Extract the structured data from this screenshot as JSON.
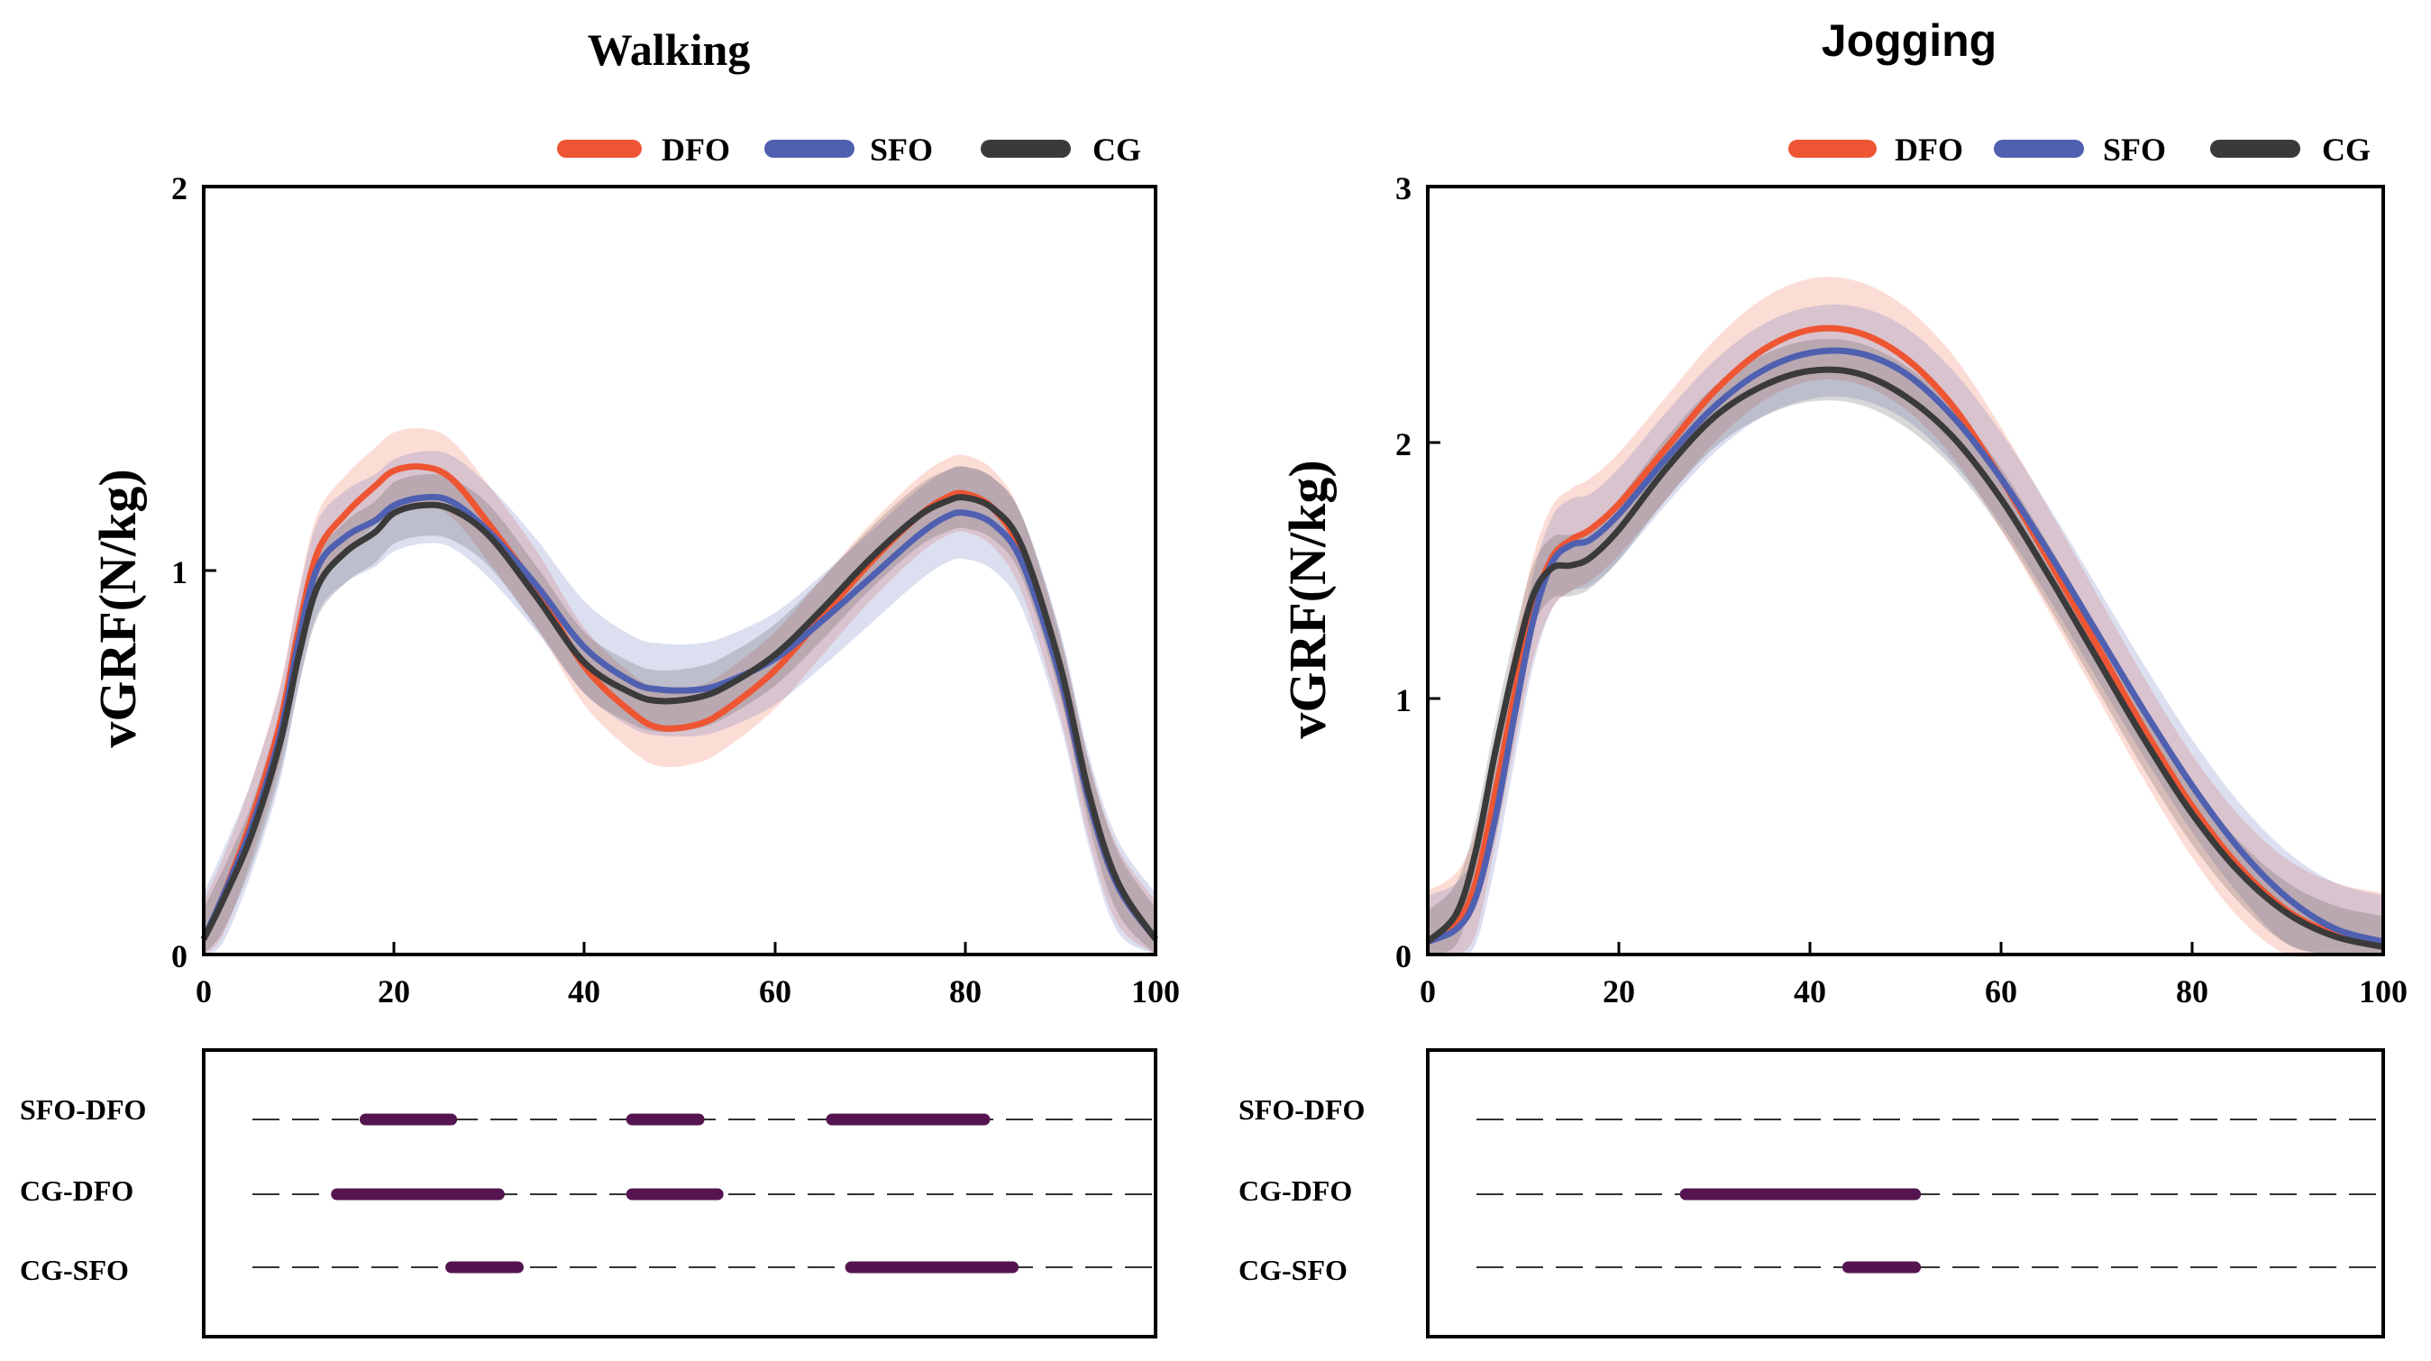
{
  "chart_data": [
    {
      "type": "line",
      "title": "Walking",
      "xlabel": "",
      "ylabel": "vGRF(N/kg)",
      "xlim": [
        0,
        100
      ],
      "ylim": [
        0,
        2
      ],
      "x_ticks": [
        "0",
        "20",
        "40",
        "60",
        "80",
        "100"
      ],
      "y_ticks": [
        "0",
        "1",
        "2"
      ],
      "legend_position": "top-right",
      "x": [
        0,
        2,
        5,
        8,
        10,
        12,
        15,
        18,
        20,
        23,
        26,
        30,
        35,
        40,
        45,
        48,
        52,
        55,
        60,
        65,
        70,
        75,
        78,
        80,
        83,
        86,
        90,
        93,
        96,
        100
      ],
      "series": [
        {
          "name": "DFO",
          "color": "#EE5533",
          "band": 0.1,
          "values": [
            0.04,
            0.15,
            0.35,
            0.6,
            0.85,
            1.05,
            1.15,
            1.22,
            1.26,
            1.27,
            1.24,
            1.12,
            0.95,
            0.75,
            0.63,
            0.59,
            0.6,
            0.64,
            0.74,
            0.88,
            1.02,
            1.14,
            1.19,
            1.2,
            1.16,
            1.04,
            0.72,
            0.4,
            0.18,
            0.04
          ]
        },
        {
          "name": "SFO",
          "color": "#5060B0",
          "band": 0.12,
          "values": [
            0.04,
            0.15,
            0.33,
            0.57,
            0.82,
            1.01,
            1.09,
            1.13,
            1.17,
            1.19,
            1.18,
            1.1,
            0.96,
            0.8,
            0.71,
            0.69,
            0.69,
            0.71,
            0.77,
            0.87,
            0.98,
            1.09,
            1.14,
            1.15,
            1.12,
            1.02,
            0.72,
            0.4,
            0.18,
            0.04
          ]
        },
        {
          "name": "CG",
          "color": "#3A3A3A",
          "band": 0.08,
          "values": [
            0.04,
            0.14,
            0.31,
            0.55,
            0.78,
            0.96,
            1.05,
            1.1,
            1.15,
            1.17,
            1.16,
            1.09,
            0.93,
            0.76,
            0.68,
            0.66,
            0.67,
            0.7,
            0.78,
            0.9,
            1.03,
            1.14,
            1.18,
            1.19,
            1.16,
            1.06,
            0.75,
            0.42,
            0.19,
            0.04
          ]
        }
      ],
      "comparisons": [
        {
          "label": "SFO-DFO",
          "ranges": [
            [
              17,
              26
            ],
            [
              45,
              52
            ],
            [
              66,
              82
            ]
          ]
        },
        {
          "label": "CG-DFO",
          "ranges": [
            [
              14,
              31
            ],
            [
              45,
              54
            ]
          ]
        },
        {
          "label": "CG-SFO",
          "ranges": [
            [
              26,
              33
            ],
            [
              68,
              85
            ]
          ]
        }
      ]
    },
    {
      "type": "line",
      "title": "Jogging",
      "xlabel": "",
      "ylabel": "vGRF(N/kg)",
      "xlim": [
        0,
        100
      ],
      "ylim": [
        0,
        3
      ],
      "x_ticks": [
        "0",
        "20",
        "40",
        "60",
        "80",
        "100"
      ],
      "y_ticks": [
        "0",
        "1",
        "2",
        "3"
      ],
      "legend_position": "top-right",
      "x": [
        0,
        3,
        5,
        7,
        9,
        11,
        13,
        15,
        17,
        20,
        25,
        30,
        35,
        40,
        45,
        50,
        55,
        60,
        65,
        70,
        75,
        80,
        85,
        90,
        95,
        100
      ],
      "series": [
        {
          "name": "DFO",
          "color": "#EE5533",
          "band": 0.2,
          "values": [
            0.05,
            0.12,
            0.28,
            0.62,
            1.0,
            1.35,
            1.55,
            1.62,
            1.66,
            1.76,
            1.98,
            2.2,
            2.36,
            2.44,
            2.43,
            2.33,
            2.14,
            1.86,
            1.54,
            1.21,
            0.88,
            0.58,
            0.34,
            0.17,
            0.08,
            0.04
          ]
        },
        {
          "name": "SFO",
          "color": "#5060B0",
          "band": 0.18,
          "values": [
            0.05,
            0.1,
            0.22,
            0.52,
            0.92,
            1.3,
            1.53,
            1.6,
            1.62,
            1.72,
            1.94,
            2.14,
            2.28,
            2.35,
            2.35,
            2.27,
            2.1,
            1.86,
            1.57,
            1.26,
            0.95,
            0.66,
            0.41,
            0.22,
            0.1,
            0.05
          ]
        },
        {
          "name": "CG",
          "color": "#3A3A3A",
          "band": 0.12,
          "values": [
            0.05,
            0.16,
            0.4,
            0.78,
            1.12,
            1.4,
            1.51,
            1.52,
            1.55,
            1.66,
            1.9,
            2.1,
            2.22,
            2.28,
            2.27,
            2.18,
            2.02,
            1.78,
            1.48,
            1.16,
            0.84,
            0.55,
            0.32,
            0.16,
            0.07,
            0.03
          ]
        }
      ],
      "comparisons": [
        {
          "label": "SFO-DFO",
          "ranges": []
        },
        {
          "label": "CG-DFO",
          "ranges": [
            [
              27,
              51
            ]
          ]
        },
        {
          "label": "CG-SFO",
          "ranges": [
            [
              44,
              51
            ]
          ]
        }
      ]
    }
  ]
}
